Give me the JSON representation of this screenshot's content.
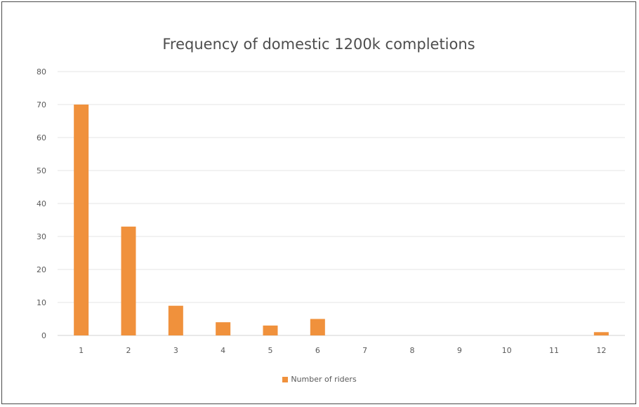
{
  "colors": {
    "bar": "#f0913c",
    "grid": "#e6e6e6",
    "axis": "#d0d0d0"
  },
  "chart_data": {
    "type": "bar",
    "title": "Frequency of domestic 1200k completions",
    "categories": [
      "1",
      "2",
      "3",
      "4",
      "5",
      "6",
      "7",
      "8",
      "9",
      "10",
      "11",
      "12"
    ],
    "series": [
      {
        "name": "Number of riders",
        "values": [
          70,
          33,
          9,
          4,
          3,
          5,
          0,
          0,
          0,
          0,
          0,
          1
        ]
      }
    ],
    "ylim": [
      0,
      80
    ],
    "yticks": [
      0,
      10,
      20,
      30,
      40,
      50,
      60,
      70,
      80
    ],
    "grid": true,
    "legend_position": "bottom"
  }
}
